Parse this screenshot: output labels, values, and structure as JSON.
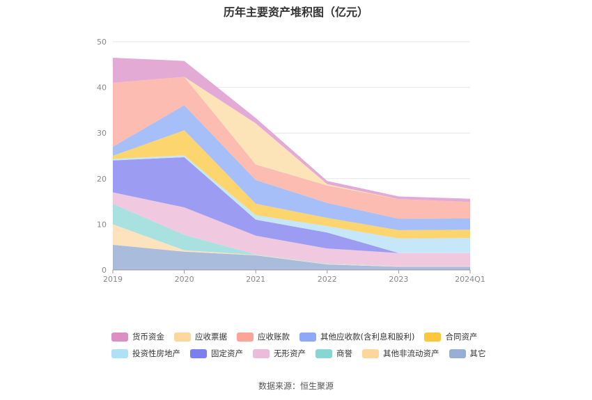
{
  "chart_data": {
    "type": "area",
    "stacked": true,
    "title": "历年主要资产堆积图（亿元）",
    "categories": [
      "2019",
      "2020",
      "2021",
      "2022",
      "2023",
      "2024Q1"
    ],
    "ylim": [
      0,
      50
    ],
    "yticks": [
      0,
      10,
      20,
      30,
      40,
      50
    ],
    "grid": true,
    "legend_position": "bottom",
    "series": [
      {
        "name": "其它",
        "color": "#a9bcdc",
        "values": [
          5.5,
          4.0,
          3.2,
          1.2,
          0.7,
          0.7
        ]
      },
      {
        "name": "其他非流动资产",
        "color": "#fde3bd",
        "values": [
          4.5,
          0.3,
          0.1,
          0.1,
          0.1,
          0.1
        ]
      },
      {
        "name": "商誉",
        "color": "#a8e1e0",
        "values": [
          4.5,
          3.4,
          0.1,
          0.1,
          0.0,
          0.0
        ]
      },
      {
        "name": "无形资产",
        "color": "#f0c9e0",
        "values": [
          2.5,
          6.0,
          4.1,
          3.3,
          2.9,
          2.9
        ]
      },
      {
        "name": "固定资产",
        "color": "#9b9cf2",
        "values": [
          7.0,
          11.0,
          3.5,
          3.5,
          0.0,
          0.0
        ]
      },
      {
        "name": "投资性房地产",
        "color": "#c6e6fa",
        "values": [
          0.3,
          0.4,
          1.0,
          1.4,
          3.2,
          3.3
        ]
      },
      {
        "name": "合同资产",
        "color": "#fdd56f",
        "values": [
          0.7,
          5.5,
          2.5,
          1.8,
          1.8,
          1.8
        ]
      },
      {
        "name": "其他应收款(含利息和股利)",
        "color": "#a7bff9",
        "values": [
          2.0,
          5.5,
          5.2,
          3.3,
          2.5,
          2.5
        ]
      },
      {
        "name": "应收账款",
        "color": "#fdbcb1",
        "values": [
          14.0,
          6.2,
          3.4,
          3.8,
          4.3,
          3.6
        ]
      },
      {
        "name": "应收票据",
        "color": "#fde3b8",
        "values": [
          0.0,
          0.0,
          9.0,
          0.3,
          0.0,
          0.0
        ]
      },
      {
        "name": "货币资金",
        "color": "#e3aad6",
        "values": [
          5.5,
          3.5,
          1.2,
          0.7,
          0.6,
          0.7
        ]
      }
    ]
  },
  "legend": {
    "rows": [
      [
        {
          "label": "货币资金",
          "color": "#d98fc4"
        },
        {
          "label": "应收票据",
          "color": "#fdd79c"
        },
        {
          "label": "应收账款",
          "color": "#fba597"
        },
        {
          "label": "其他应收款(含利息和股利)",
          "color": "#8da8f5"
        },
        {
          "label": "合同资产",
          "color": "#fcc63d"
        }
      ],
      [
        {
          "label": "投资性房地产",
          "color": "#aee0f8"
        },
        {
          "label": "固定资产",
          "color": "#7c7ff0"
        },
        {
          "label": "无形资产",
          "color": "#ecbada"
        },
        {
          "label": "商誉",
          "color": "#86d6d4"
        },
        {
          "label": "其他非流动资产",
          "color": "#fcd69a"
        },
        {
          "label": "其它",
          "color": "#97afd6"
        }
      ]
    ]
  },
  "source": "数据来源：恒生聚源"
}
